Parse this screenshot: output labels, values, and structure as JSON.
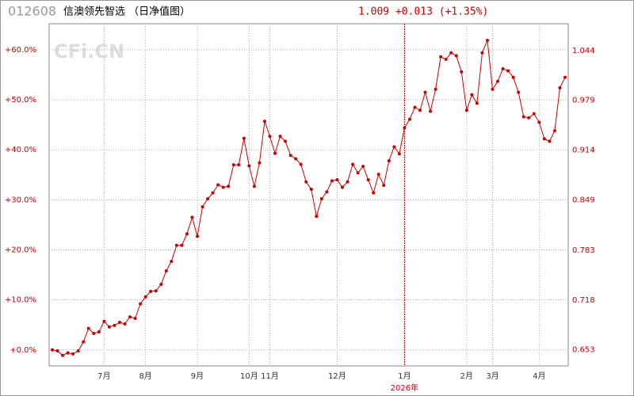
{
  "chart_data": {
    "type": "line",
    "code": "012608",
    "title": "信澳领先智选 （日净值图）",
    "quote": "1.009 +0.013 (+1.35%)",
    "watermark": "CFi.CN",
    "x_year_label": "2026年",
    "categories": [
      null,
      null,
      null,
      null,
      null,
      null,
      null,
      null,
      null,
      null,
      "7月",
      null,
      null,
      null,
      null,
      null,
      null,
      null,
      "8月",
      null,
      null,
      null,
      null,
      null,
      null,
      null,
      null,
      null,
      "9月",
      null,
      null,
      null,
      null,
      null,
      null,
      null,
      null,
      null,
      "10月",
      null,
      null,
      null,
      "11月",
      null,
      null,
      null,
      null,
      null,
      null,
      null,
      null,
      null,
      null,
      null,
      null,
      "12月",
      null,
      null,
      null,
      null,
      null,
      null,
      null,
      null,
      null,
      null,
      null,
      null,
      "1月",
      null,
      null,
      null,
      null,
      null,
      null,
      null,
      null,
      null,
      null,
      null,
      "2月",
      null,
      null,
      null,
      null,
      "3月",
      null,
      null,
      null,
      null,
      null,
      null,
      null,
      null,
      "4月",
      null,
      null,
      null,
      null,
      null
    ],
    "series": [
      {
        "color": "#cc0000",
        "values": [
          0.0,
          -0.2,
          -1.1,
          -0.6,
          -0.8,
          -0.2,
          1.6,
          4.3,
          3.3,
          3.6,
          5.7,
          4.6,
          4.9,
          5.5,
          5.2,
          6.6,
          6.3,
          9.2,
          10.6,
          11.7,
          11.8,
          13.1,
          15.8,
          17.7,
          20.9,
          20.9,
          23.2,
          26.5,
          22.7,
          28.6,
          30.2,
          31.4,
          33.0,
          32.5,
          32.7,
          37.0,
          37.0,
          42.3,
          36.8,
          32.7,
          37.4,
          45.7,
          42.7,
          39.3,
          42.7,
          41.7,
          38.9,
          38.2,
          37.1,
          33.6,
          32.1,
          26.7,
          30.2,
          31.6,
          33.8,
          34.0,
          32.5,
          33.6,
          37.1,
          35.4,
          36.7,
          34.0,
          31.4,
          35.1,
          32.9,
          37.8,
          40.6,
          39.2,
          44.4,
          46.1,
          48.5,
          47.9,
          51.5,
          47.7,
          52.1,
          58.6,
          58.1,
          59.4,
          58.8,
          55.6,
          47.9,
          51.0,
          49.3,
          59.4,
          61.9,
          52.1,
          53.7,
          56.2,
          55.8,
          54.5,
          51.5,
          46.6,
          46.4,
          47.2,
          45.5,
          42.2,
          41.7,
          43.8,
          52.4,
          54.5
        ]
      }
    ],
    "ylim": [
      -3.2,
      65.2
    ],
    "yticks": [
      {
        "value": 0,
        "label": "+0.0%"
      },
      {
        "value": 10,
        "label": "+10.0%"
      },
      {
        "value": 20,
        "label": "+20.0%"
      },
      {
        "value": 30,
        "label": "+30.0%"
      },
      {
        "value": 40,
        "label": "+40.0%"
      },
      {
        "value": 50,
        "label": "+50.0%"
      },
      {
        "value": 60,
        "label": "+60.0%"
      }
    ],
    "y2lim": [
      0.632,
      1.079
    ],
    "y2ticks": [
      0.653,
      0.718,
      0.783,
      0.849,
      0.914,
      0.979,
      1.044
    ],
    "grid": true
  }
}
